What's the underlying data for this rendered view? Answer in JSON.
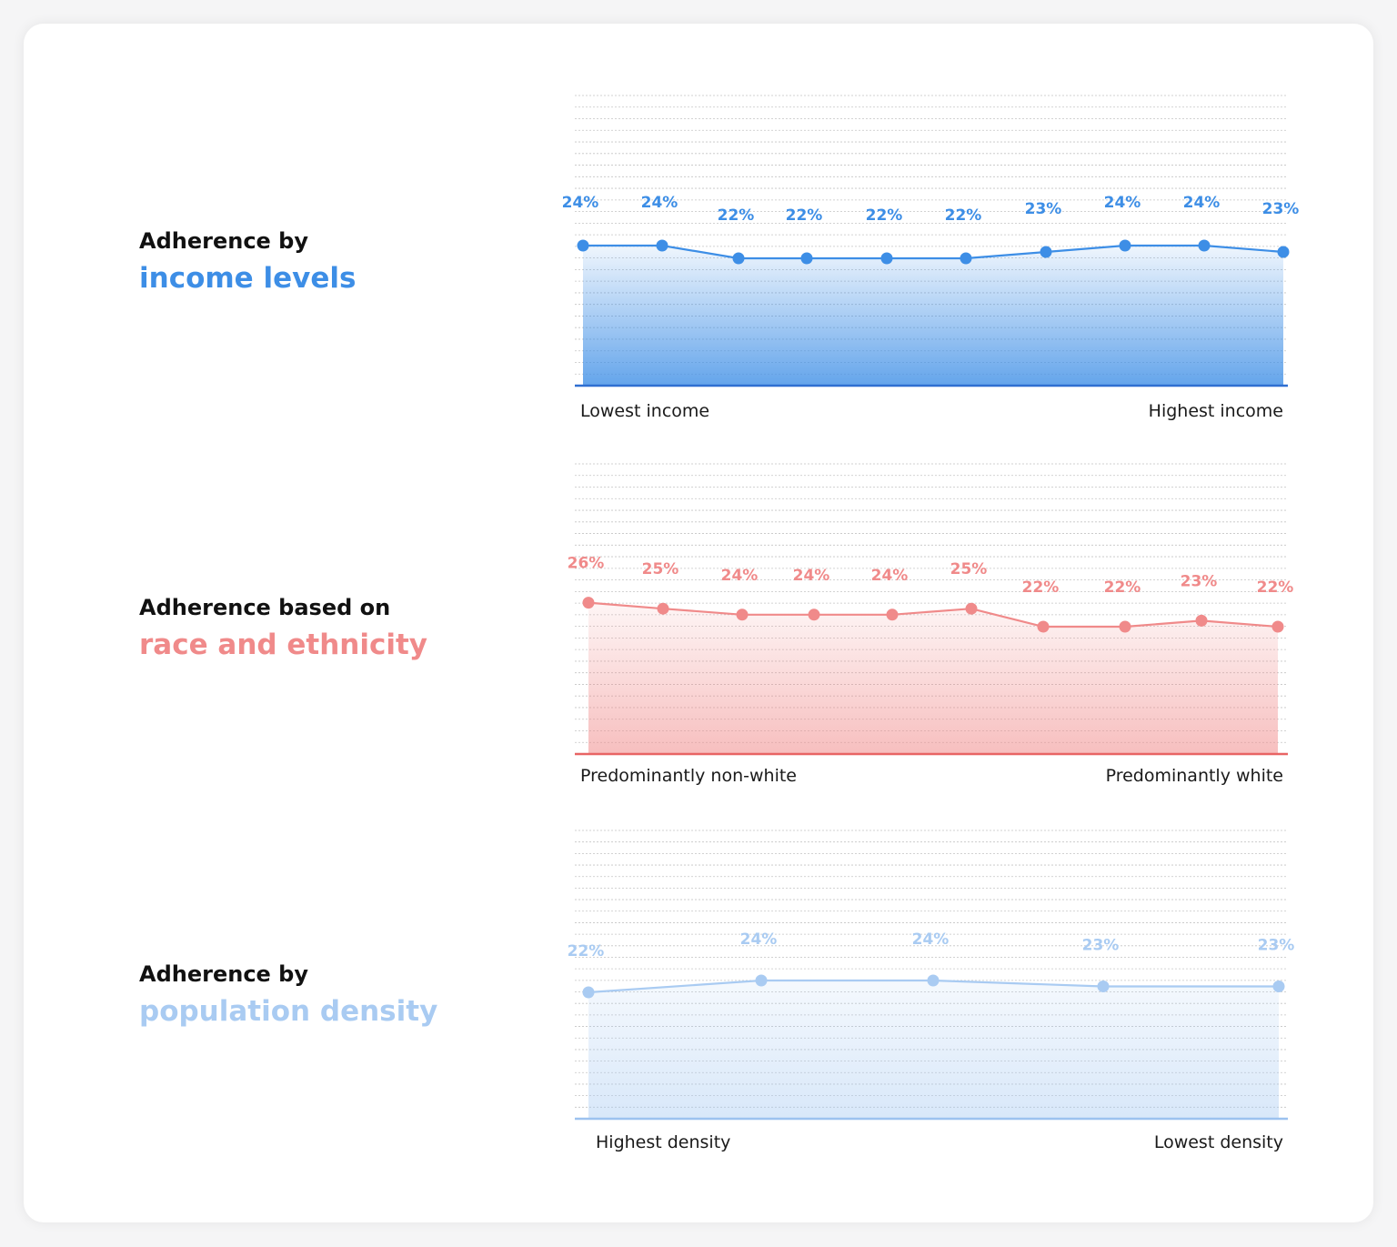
{
  "panels": [
    {
      "title_line1": "Adherence by",
      "title_line2": "income levels",
      "color": "#3d8ee6"
    },
    {
      "title_line1": "Adherence based on",
      "title_line2": "race and ethnicity",
      "color": "#f08a8a"
    },
    {
      "title_line1": "Adherence by",
      "title_line2": "population density",
      "color": "#a9cbf2"
    }
  ],
  "chart_data": [
    {
      "type": "area",
      "title": "Adherence by income levels",
      "x_start_label": "Lowest income",
      "x_end_label": "Highest income",
      "values": [
        24,
        24,
        22,
        22,
        22,
        22,
        23,
        24,
        24,
        23
      ],
      "value_labels": [
        "24%",
        "24%",
        "22%",
        "22%",
        "22%",
        "22%",
        "23%",
        "24%",
        "24%",
        "23%"
      ],
      "unit": "%",
      "grid": true,
      "color": "#3d8ee6"
    },
    {
      "type": "area",
      "title": "Adherence based on race and ethnicity",
      "x_start_label": "Predominantly non-white",
      "x_end_label": "Predominantly white",
      "values": [
        26,
        25,
        24,
        24,
        24,
        25,
        22,
        22,
        23,
        22
      ],
      "value_labels": [
        "26%",
        "25%",
        "24%",
        "24%",
        "24%",
        "25%",
        "22%",
        "22%",
        "23%",
        "22%"
      ],
      "unit": "%",
      "grid": true,
      "color": "#f08a8a"
    },
    {
      "type": "area",
      "title": "Adherence by population density",
      "x_start_label": "Highest density",
      "x_end_label": "Lowest density",
      "values": [
        22,
        24,
        24,
        23,
        23
      ],
      "value_labels": [
        "22%",
        "24%",
        "24%",
        "23%",
        "23%"
      ],
      "unit": "%",
      "grid": true,
      "color": "#a9cbf2"
    }
  ]
}
